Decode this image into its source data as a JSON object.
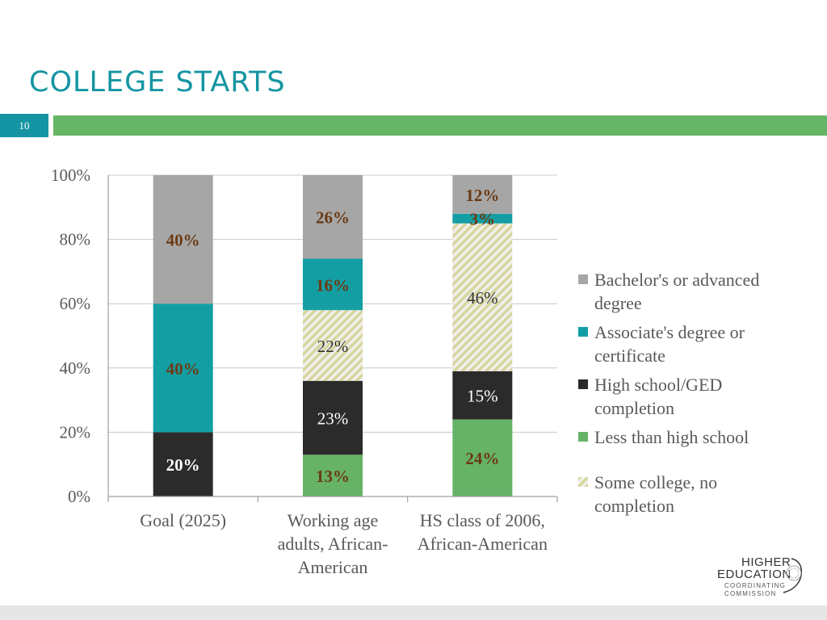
{
  "slide": {
    "title": "COLLEGE STARTS",
    "page_number": "10"
  },
  "logo": {
    "line1": "HIGHER",
    "line2": "EDUCATION",
    "line3": "COORDINATING",
    "line4": "COMMISSION"
  },
  "colors": {
    "title": "#1595a3",
    "accent_bar": "#67b567",
    "bachelor": "#a6a6a6",
    "associate": "#139ea4",
    "high_school": "#2b2b2b",
    "less_than_hs": "#66b266",
    "some_college_a": "#d7d59a",
    "some_college_b": "#efefef",
    "label_brown": "#6b3a12"
  },
  "chart_data": {
    "type": "bar",
    "stacked": true,
    "categories": [
      "Goal (2025)",
      "Working age adults, African-American",
      "HS class of 2006, African-American"
    ],
    "category_lines": [
      [
        "Goal (2025)"
      ],
      [
        "Working age",
        "adults, African-",
        "American"
      ],
      [
        "HS class of 2006,",
        "African-American"
      ]
    ],
    "ylim": [
      0,
      100
    ],
    "yticks": [
      0,
      20,
      40,
      60,
      80,
      100
    ],
    "ytick_labels": [
      "0%",
      "20%",
      "40%",
      "60%",
      "80%",
      "100%"
    ],
    "grid": true,
    "legend_position": "right",
    "series": [
      {
        "name": "Less than high school",
        "key": "less_than_hs",
        "values": [
          0,
          13,
          24
        ],
        "labels": [
          "",
          "13%",
          "24%"
        ],
        "label_color": "brown"
      },
      {
        "name": "High school/GED completion",
        "key": "high_school",
        "values": [
          20,
          23,
          15
        ],
        "labels": [
          "20%",
          "23%",
          "15%"
        ],
        "label_color": "white"
      },
      {
        "name": "Some college, no completion",
        "key": "some_college",
        "values": [
          0,
          22,
          46
        ],
        "labels": [
          "",
          "22%",
          "46%"
        ],
        "label_color": "dark"
      },
      {
        "name": "Associate's degree or certificate",
        "key": "associate",
        "values": [
          40,
          16,
          3
        ],
        "labels": [
          "40%",
          "16%",
          "3%"
        ],
        "label_color": "brown"
      },
      {
        "name": "Bachelor's or advanced degree",
        "key": "bachelor",
        "values": [
          40,
          26,
          12
        ],
        "labels": [
          "40%",
          "26%",
          "12%"
        ],
        "label_color": "brown"
      }
    ],
    "legend": [
      {
        "key": "bachelor",
        "lines": [
          "Bachelor's or advanced",
          "degree"
        ]
      },
      {
        "key": "associate",
        "lines": [
          "Associate's degree or",
          "certificate"
        ]
      },
      {
        "key": "high_school",
        "lines": [
          "High school/GED",
          "completion"
        ]
      },
      {
        "key": "less_than_hs",
        "lines": [
          "Less than high school"
        ]
      },
      {
        "key": "some_college",
        "lines": [
          "Some college, no",
          "completion"
        ]
      }
    ]
  }
}
